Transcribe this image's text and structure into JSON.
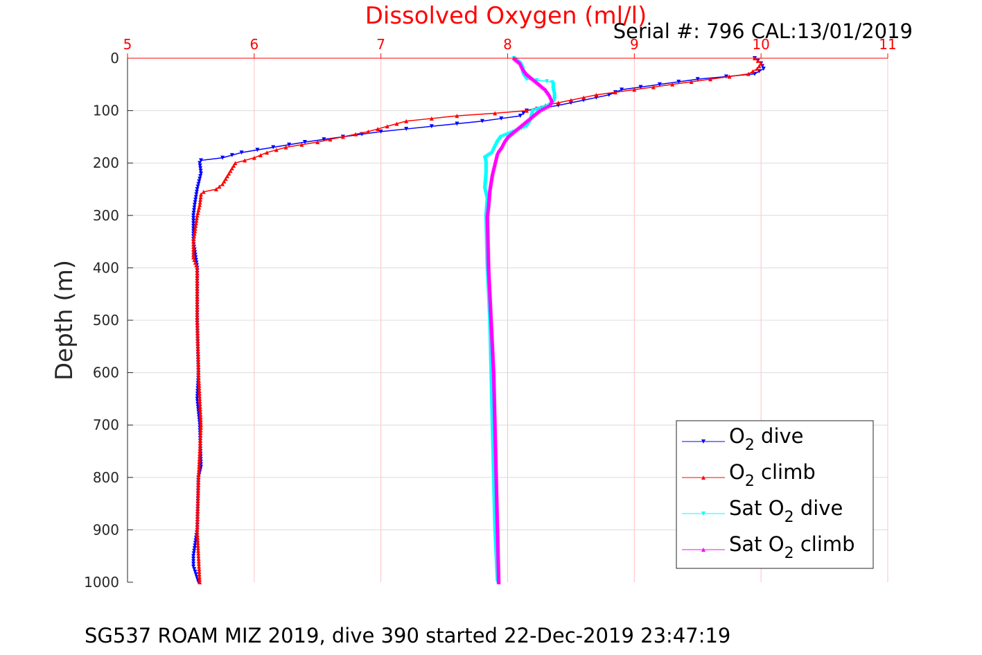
{
  "chart_data": {
    "type": "scatter",
    "title": "Dissolved Oxygen (ml/l)",
    "subtitle": "Serial #: 796  CAL:13/01/2019",
    "footer": "SG537 ROAM MIZ 2019, dive 390 started 22-Dec-2019 23:47:19",
    "xlabel": "",
    "ylabel": "Depth (m)",
    "xlim": [
      5,
      11
    ],
    "ylim": [
      0,
      1000
    ],
    "y_reversed": true,
    "x_axis_location": "top",
    "x_ticks": [
      "5",
      "6",
      "7",
      "8",
      "9",
      "10",
      "11"
    ],
    "y_ticks": [
      "0",
      "100",
      "200",
      "300",
      "400",
      "500",
      "600",
      "700",
      "800",
      "900",
      "1000"
    ],
    "grid": true,
    "legend_position": "bottom-right",
    "colors": {
      "axis_x": "#ff0000",
      "grid_x": "#ffc0c0",
      "grid_y": "#dcdcdc"
    },
    "legend": [
      {
        "base": "O",
        "sub": "2",
        "rest": " dive",
        "color": "#0000ff",
        "marker": "down"
      },
      {
        "base": "O",
        "sub": "2",
        "rest": " climb",
        "color": "#ff0000",
        "marker": "up"
      },
      {
        "base": "Sat O",
        "sub": "2",
        "rest": " dive",
        "color": "#00ffff",
        "marker": "down"
      },
      {
        "base": "Sat O",
        "sub": "2",
        "rest": " climb",
        "color": "#ff00ff",
        "marker": "up"
      }
    ],
    "series": [
      {
        "name": "O2 dive",
        "color": "#0000ff",
        "marker": "down",
        "step": 5,
        "depth": [
          0,
          10,
          20,
          30,
          40,
          50,
          60,
          70,
          80,
          90,
          100,
          110,
          120,
          140,
          160,
          180,
          190,
          195,
          200,
          220,
          250,
          280,
          300,
          350,
          400,
          500,
          600,
          650,
          700,
          780,
          800,
          900,
          950,
          970,
          1000
        ],
        "value": [
          9.95,
          10.0,
          10.02,
          9.95,
          9.5,
          9.2,
          8.9,
          8.8,
          8.6,
          8.4,
          8.15,
          8.1,
          7.8,
          7.0,
          6.4,
          5.9,
          5.75,
          5.58,
          5.57,
          5.58,
          5.55,
          5.53,
          5.52,
          5.52,
          5.55,
          5.55,
          5.56,
          5.55,
          5.57,
          5.58,
          5.56,
          5.55,
          5.52,
          5.52,
          5.56
        ]
      },
      {
        "name": "O2 climb",
        "color": "#ff0000",
        "marker": "up",
        "step": 5,
        "depth": [
          0,
          10,
          20,
          30,
          40,
          50,
          60,
          70,
          80,
          90,
          100,
          105,
          110,
          120,
          140,
          160,
          170,
          180,
          190,
          200,
          220,
          240,
          250,
          255,
          260,
          280,
          300,
          350,
          380,
          400,
          500,
          600,
          700,
          800,
          900,
          1000
        ],
        "value": [
          9.95,
          10.0,
          9.97,
          9.9,
          9.6,
          9.3,
          9.0,
          8.7,
          8.5,
          8.3,
          8.15,
          7.9,
          7.6,
          7.2,
          6.9,
          6.5,
          6.25,
          6.1,
          6.0,
          5.85,
          5.8,
          5.75,
          5.7,
          5.6,
          5.58,
          5.57,
          5.55,
          5.52,
          5.52,
          5.55,
          5.55,
          5.56,
          5.58,
          5.56,
          5.55,
          5.57
        ]
      },
      {
        "name": "Sat O2 dive",
        "color": "#00ffff",
        "marker": "down",
        "step": 2,
        "depth": [
          0,
          10,
          20,
          30,
          40,
          45,
          50,
          60,
          70,
          80,
          90,
          100,
          120,
          130,
          140,
          150,
          160,
          170,
          180,
          190,
          200,
          220,
          250,
          270,
          300,
          400,
          500,
          600,
          700,
          800,
          900,
          1000
        ],
        "value": [
          8.05,
          8.1,
          8.12,
          8.12,
          8.15,
          8.35,
          8.36,
          8.36,
          8.37,
          8.37,
          8.33,
          8.2,
          8.18,
          8.15,
          8.05,
          7.95,
          7.92,
          7.9,
          7.88,
          7.82,
          7.83,
          7.83,
          7.82,
          7.84,
          7.83,
          7.84,
          7.86,
          7.87,
          7.88,
          7.89,
          7.9,
          7.92
        ]
      },
      {
        "name": "Sat O2 climb",
        "color": "#ff00ff",
        "marker": "up",
        "step": 2,
        "depth": [
          0,
          10,
          20,
          30,
          40,
          50,
          60,
          70,
          80,
          90,
          100,
          110,
          120,
          130,
          140,
          150,
          160,
          170,
          180,
          200,
          220,
          250,
          280,
          300,
          400,
          500,
          600,
          700,
          800,
          900,
          1000
        ],
        "value": [
          8.05,
          8.1,
          8.12,
          8.15,
          8.2,
          8.25,
          8.3,
          8.33,
          8.35,
          8.33,
          8.25,
          8.2,
          8.15,
          8.1,
          8.05,
          8.0,
          7.97,
          7.95,
          7.92,
          7.9,
          7.88,
          7.86,
          7.85,
          7.84,
          7.85,
          7.87,
          7.89,
          7.9,
          7.91,
          7.92,
          7.93
        ]
      }
    ]
  }
}
